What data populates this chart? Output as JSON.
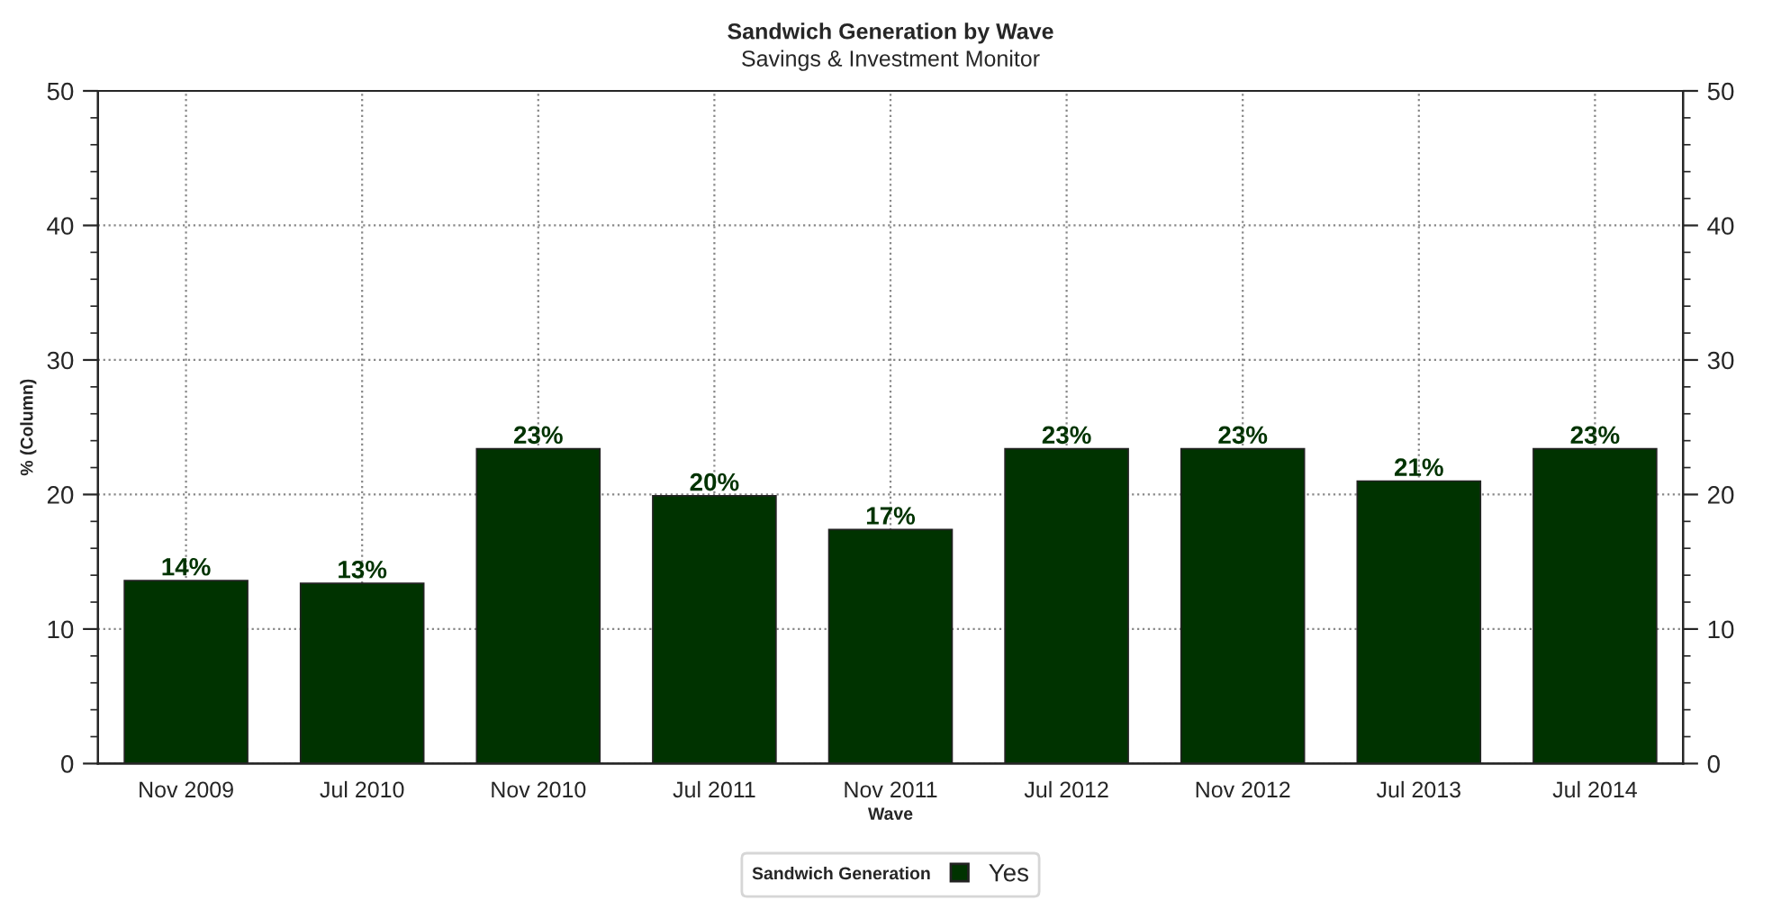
{
  "chart_data": {
    "type": "bar",
    "title": "Sandwich Generation by Wave",
    "subtitle": "Savings & Investment Monitor",
    "xlabel": "Wave",
    "ylabel": "% (Column)",
    "legend_title": "Sandwich Generation",
    "categories": [
      "Nov 2009",
      "Jul 2010",
      "Nov 2010",
      "Jul 2011",
      "Nov 2011",
      "Jul 2012",
      "Nov 2012",
      "Jul 2013",
      "Jul 2014"
    ],
    "series": [
      {
        "name": "Yes",
        "color": "#003300",
        "values": [
          13.6,
          13.4,
          23.4,
          19.9,
          17.4,
          23.4,
          23.4,
          21.0,
          23.4
        ],
        "value_labels": [
          "14%",
          "13%",
          "23%",
          "20%",
          "17%",
          "23%",
          "23%",
          "21%",
          "23%"
        ]
      }
    ],
    "ylim": [
      0,
      50
    ],
    "yticks": [
      0,
      10,
      20,
      30,
      40,
      50
    ],
    "y2lim": [
      0,
      50
    ],
    "y2ticks": [
      0,
      10,
      20,
      30,
      40,
      50
    ],
    "grid": true,
    "legend": "bottom"
  }
}
